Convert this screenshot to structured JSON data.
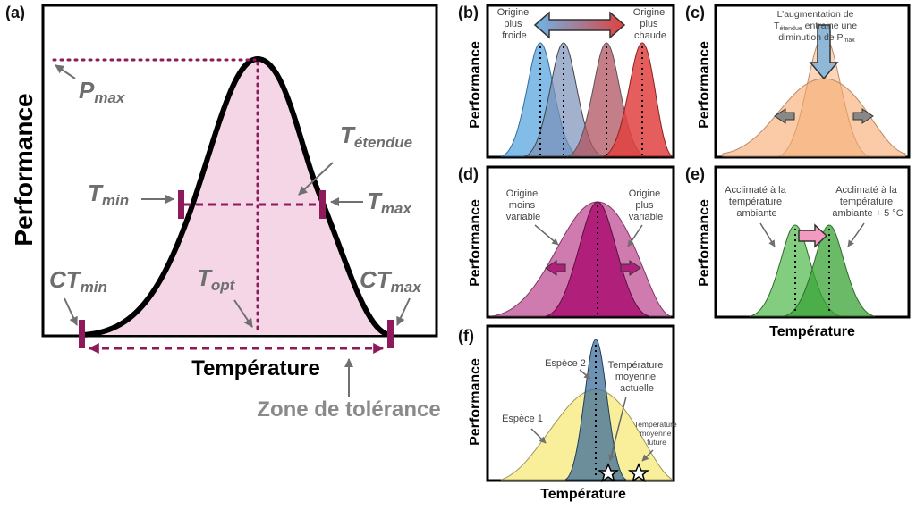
{
  "panel_a": {
    "label": "(a)",
    "ylabel": "Performance",
    "xlabel": "Température",
    "pmax": {
      "main": "P",
      "sub": "max"
    },
    "tetendue": {
      "main": "T",
      "sub": "étendue"
    },
    "tmin": {
      "main": "T",
      "sub": "min"
    },
    "tmax": {
      "main": "T",
      "sub": "max"
    },
    "ctmin": {
      "main": "CT",
      "sub": "min"
    },
    "ctmax": {
      "main": "CT",
      "sub": "max"
    },
    "topt": {
      "main": "T",
      "sub": "opt"
    },
    "zone": "Zone de tolérance"
  },
  "panel_b": {
    "label": "(b)",
    "ylabel": "Performance",
    "left": [
      "Origine",
      "plus",
      "froide"
    ],
    "right": [
      "Origine",
      "plus",
      "chaude"
    ]
  },
  "panel_c": {
    "label": "(c)",
    "ylabel": "Performance",
    "line1": "L’augmentation de",
    "line2_main": "T",
    "line2_sub": "étendue",
    "line2_rest": " entraine une",
    "line3_main": "diminution de P",
    "line3_sub": "max"
  },
  "panel_d": {
    "label": "(d)",
    "ylabel": "Performance",
    "left": [
      "Origine",
      "moins",
      "variable"
    ],
    "right": [
      "Origine",
      "plus",
      "variable"
    ]
  },
  "panel_e": {
    "label": "(e)",
    "ylabel": "Performance",
    "xlabel": "Température",
    "left": [
      "Acclimaté à la",
      "température",
      "ambiante"
    ],
    "right": [
      "Acclimaté à la",
      "température",
      "ambiante + 5 °C"
    ]
  },
  "panel_f": {
    "label": "(f)",
    "ylabel": "Performance",
    "xlabel": "Température",
    "species1": "Espèce 1",
    "species2": "Espèce 2",
    "current": [
      "Température",
      "moyenne",
      "actuelle"
    ],
    "future": [
      "Température",
      "moyenne",
      "future"
    ]
  },
  "colors": {
    "magenta": "#8e1a5c",
    "pink_fill": "#f4d6e6",
    "blue": "#4a9fdc",
    "red": "#e0413f",
    "orange": "#f7a86a",
    "green": "#3aa336",
    "yellow": "#f9ef9b",
    "slate": "#3c6e9b"
  }
}
